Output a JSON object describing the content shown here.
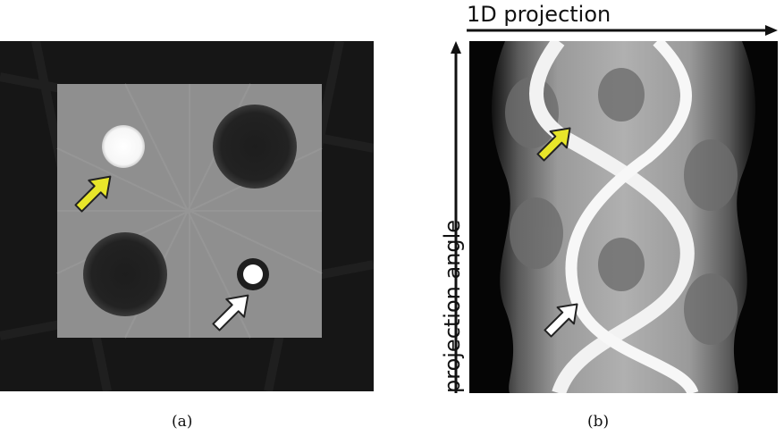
{
  "figure": {
    "panel_a": {
      "caption": "(a)",
      "arrow_colors": {
        "yellow": "#e8e62a",
        "white": "#ffffff"
      }
    },
    "panel_b": {
      "caption": "(b)",
      "x_axis_label": "1D projection",
      "y_axis_label": "projection angle",
      "arrow_colors": {
        "yellow": "#e8e62a",
        "white": "#ffffff"
      }
    }
  }
}
